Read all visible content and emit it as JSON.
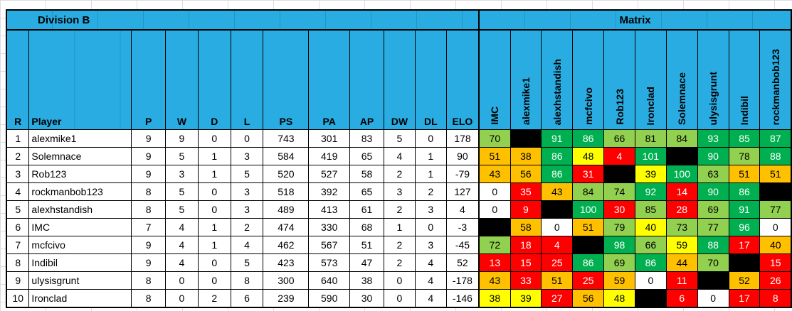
{
  "titles": {
    "division": "Division B",
    "matrix": "Matrix"
  },
  "palette": {
    "header_fill": "#29ACE2",
    "lg": "#92D050",
    "dg": "#00B050",
    "ye": "#FFFF00",
    "or": "#FFC000",
    "rd": "#FF0000",
    "wh": "#FFFFFF",
    "bk": "#000000"
  },
  "white_text_on": [
    "dg",
    "rd"
  ],
  "league": {
    "columns": [
      "R",
      "Player",
      "P",
      "W",
      "D",
      "L",
      "PS",
      "PA",
      "AP",
      "DW",
      "DL",
      "ELO"
    ],
    "rows": [
      {
        "r": 1,
        "player": "alexmike1",
        "p": 9,
        "w": 9,
        "d": 0,
        "l": 0,
        "ps": 743,
        "pa": 301,
        "ap": 83,
        "dw": 5,
        "dl": 0,
        "elo": 178
      },
      {
        "r": 2,
        "player": "Solemnace",
        "p": 9,
        "w": 5,
        "d": 1,
        "l": 3,
        "ps": 584,
        "pa": 419,
        "ap": 65,
        "dw": 4,
        "dl": 1,
        "elo": 90
      },
      {
        "r": 3,
        "player": "Rob123",
        "p": 9,
        "w": 3,
        "d": 1,
        "l": 5,
        "ps": 520,
        "pa": 527,
        "ap": 58,
        "dw": 2,
        "dl": 1,
        "elo": -79
      },
      {
        "r": 4,
        "player": "rockmanbob123",
        "p": 8,
        "w": 5,
        "d": 0,
        "l": 3,
        "ps": 518,
        "pa": 392,
        "ap": 65,
        "dw": 3,
        "dl": 2,
        "elo": 127
      },
      {
        "r": 5,
        "player": "alexhstandish",
        "p": 8,
        "w": 5,
        "d": 0,
        "l": 3,
        "ps": 489,
        "pa": 413,
        "ap": 61,
        "dw": 2,
        "dl": 3,
        "elo": 4
      },
      {
        "r": 6,
        "player": "IMC",
        "p": 7,
        "w": 4,
        "d": 1,
        "l": 2,
        "ps": 474,
        "pa": 330,
        "ap": 68,
        "dw": 1,
        "dl": 0,
        "elo": -3
      },
      {
        "r": 7,
        "player": "mcfcivo",
        "p": 9,
        "w": 4,
        "d": 1,
        "l": 4,
        "ps": 462,
        "pa": 567,
        "ap": 51,
        "dw": 2,
        "dl": 3,
        "elo": -45
      },
      {
        "r": 8,
        "player": "Indibil",
        "p": 9,
        "w": 4,
        "d": 0,
        "l": 5,
        "ps": 423,
        "pa": 573,
        "ap": 47,
        "dw": 2,
        "dl": 4,
        "elo": 52
      },
      {
        "r": 9,
        "player": "ulysisgrunt",
        "p": 8,
        "w": 0,
        "d": 0,
        "l": 8,
        "ps": 300,
        "pa": 640,
        "ap": 38,
        "dw": 0,
        "dl": 4,
        "elo": -178
      },
      {
        "r": 10,
        "player": "Ironclad",
        "p": 8,
        "w": 0,
        "d": 2,
        "l": 6,
        "ps": 239,
        "pa": 590,
        "ap": 30,
        "dw": 0,
        "dl": 4,
        "elo": -146
      }
    ]
  },
  "matrix": {
    "columns": [
      "IMC",
      "alexmike1",
      "alexhstandish",
      "mcfcivo",
      "Rob123",
      "Ironclad",
      "Solemnace",
      "ulysisgrunt",
      "Indibil",
      "rockmanbob123"
    ],
    "rows": [
      {
        "player": "alexmike1",
        "cells": [
          {
            "v": "70",
            "c": "lg"
          },
          {
            "v": "",
            "c": "bk"
          },
          {
            "v": "91",
            "c": "dg"
          },
          {
            "v": "86",
            "c": "dg"
          },
          {
            "v": "66",
            "c": "lg"
          },
          {
            "v": "81",
            "c": "lg"
          },
          {
            "v": "84",
            "c": "lg"
          },
          {
            "v": "93",
            "c": "dg"
          },
          {
            "v": "85",
            "c": "dg"
          },
          {
            "v": "87",
            "c": "dg"
          }
        ]
      },
      {
        "player": "Solemnace",
        "cells": [
          {
            "v": "51",
            "c": "or"
          },
          {
            "v": "38",
            "c": "or"
          },
          {
            "v": "86",
            "c": "dg"
          },
          {
            "v": "48",
            "c": "ye"
          },
          {
            "v": "4",
            "c": "rd"
          },
          {
            "v": "101",
            "c": "dg"
          },
          {
            "v": "",
            "c": "bk"
          },
          {
            "v": "90",
            "c": "dg"
          },
          {
            "v": "78",
            "c": "lg"
          },
          {
            "v": "88",
            "c": "dg"
          }
        ]
      },
      {
        "player": "Rob123",
        "cells": [
          {
            "v": "43",
            "c": "or"
          },
          {
            "v": "56",
            "c": "or"
          },
          {
            "v": "86",
            "c": "dg"
          },
          {
            "v": "31",
            "c": "rd"
          },
          {
            "v": "",
            "c": "bk"
          },
          {
            "v": "39",
            "c": "ye"
          },
          {
            "v": "100",
            "c": "dg"
          },
          {
            "v": "63",
            "c": "lg"
          },
          {
            "v": "51",
            "c": "or"
          },
          {
            "v": "51",
            "c": "or"
          }
        ]
      },
      {
        "player": "rockmanbob123",
        "cells": [
          {
            "v": "0",
            "c": "wh"
          },
          {
            "v": "35",
            "c": "rd"
          },
          {
            "v": "43",
            "c": "or"
          },
          {
            "v": "84",
            "c": "lg"
          },
          {
            "v": "74",
            "c": "lg"
          },
          {
            "v": "92",
            "c": "dg"
          },
          {
            "v": "14",
            "c": "rd"
          },
          {
            "v": "90",
            "c": "dg"
          },
          {
            "v": "86",
            "c": "dg"
          },
          {
            "v": "",
            "c": "bk"
          }
        ]
      },
      {
        "player": "alexhstandish",
        "cells": [
          {
            "v": "0",
            "c": "wh"
          },
          {
            "v": "9",
            "c": "rd"
          },
          {
            "v": "",
            "c": "bk"
          },
          {
            "v": "100",
            "c": "dg"
          },
          {
            "v": "30",
            "c": "rd"
          },
          {
            "v": "85",
            "c": "lg"
          },
          {
            "v": "28",
            "c": "rd"
          },
          {
            "v": "69",
            "c": "lg"
          },
          {
            "v": "91",
            "c": "dg"
          },
          {
            "v": "77",
            "c": "lg"
          }
        ]
      },
      {
        "player": "IMC",
        "cells": [
          {
            "v": "",
            "c": "bk"
          },
          {
            "v": "58",
            "c": "or"
          },
          {
            "v": "0",
            "c": "wh"
          },
          {
            "v": "51",
            "c": "or"
          },
          {
            "v": "79",
            "c": "lg"
          },
          {
            "v": "40",
            "c": "ye"
          },
          {
            "v": "73",
            "c": "lg"
          },
          {
            "v": "77",
            "c": "lg"
          },
          {
            "v": "96",
            "c": "dg"
          },
          {
            "v": "0",
            "c": "wh"
          }
        ]
      },
      {
        "player": "mcfcivo",
        "cells": [
          {
            "v": "72",
            "c": "lg"
          },
          {
            "v": "18",
            "c": "rd"
          },
          {
            "v": "4",
            "c": "rd"
          },
          {
            "v": "",
            "c": "bk"
          },
          {
            "v": "98",
            "c": "dg"
          },
          {
            "v": "66",
            "c": "lg"
          },
          {
            "v": "59",
            "c": "ye"
          },
          {
            "v": "88",
            "c": "dg"
          },
          {
            "v": "17",
            "c": "rd"
          },
          {
            "v": "40",
            "c": "or"
          }
        ]
      },
      {
        "player": "Indibil",
        "cells": [
          {
            "v": "13",
            "c": "rd"
          },
          {
            "v": "15",
            "c": "rd"
          },
          {
            "v": "25",
            "c": "rd"
          },
          {
            "v": "86",
            "c": "dg"
          },
          {
            "v": "69",
            "c": "lg"
          },
          {
            "v": "86",
            "c": "dg"
          },
          {
            "v": "44",
            "c": "or"
          },
          {
            "v": "70",
            "c": "lg"
          },
          {
            "v": "",
            "c": "bk"
          },
          {
            "v": "15",
            "c": "rd"
          }
        ]
      },
      {
        "player": "ulysisgrunt",
        "cells": [
          {
            "v": "43",
            "c": "or"
          },
          {
            "v": "33",
            "c": "rd"
          },
          {
            "v": "51",
            "c": "or"
          },
          {
            "v": "25",
            "c": "rd"
          },
          {
            "v": "59",
            "c": "or"
          },
          {
            "v": "0",
            "c": "wh"
          },
          {
            "v": "11",
            "c": "rd"
          },
          {
            "v": "",
            "c": "bk"
          },
          {
            "v": "52",
            "c": "or"
          },
          {
            "v": "26",
            "c": "rd"
          }
        ]
      },
      {
        "player": "Ironclad",
        "cells": [
          {
            "v": "38",
            "c": "ye"
          },
          {
            "v": "39",
            "c": "ye"
          },
          {
            "v": "27",
            "c": "rd"
          },
          {
            "v": "56",
            "c": "or"
          },
          {
            "v": "48",
            "c": "ye"
          },
          {
            "v": "",
            "c": "bk"
          },
          {
            "v": "6",
            "c": "rd"
          },
          {
            "v": "0",
            "c": "wh"
          },
          {
            "v": "17",
            "c": "rd"
          },
          {
            "v": "8",
            "c": "rd"
          }
        ]
      }
    ]
  }
}
